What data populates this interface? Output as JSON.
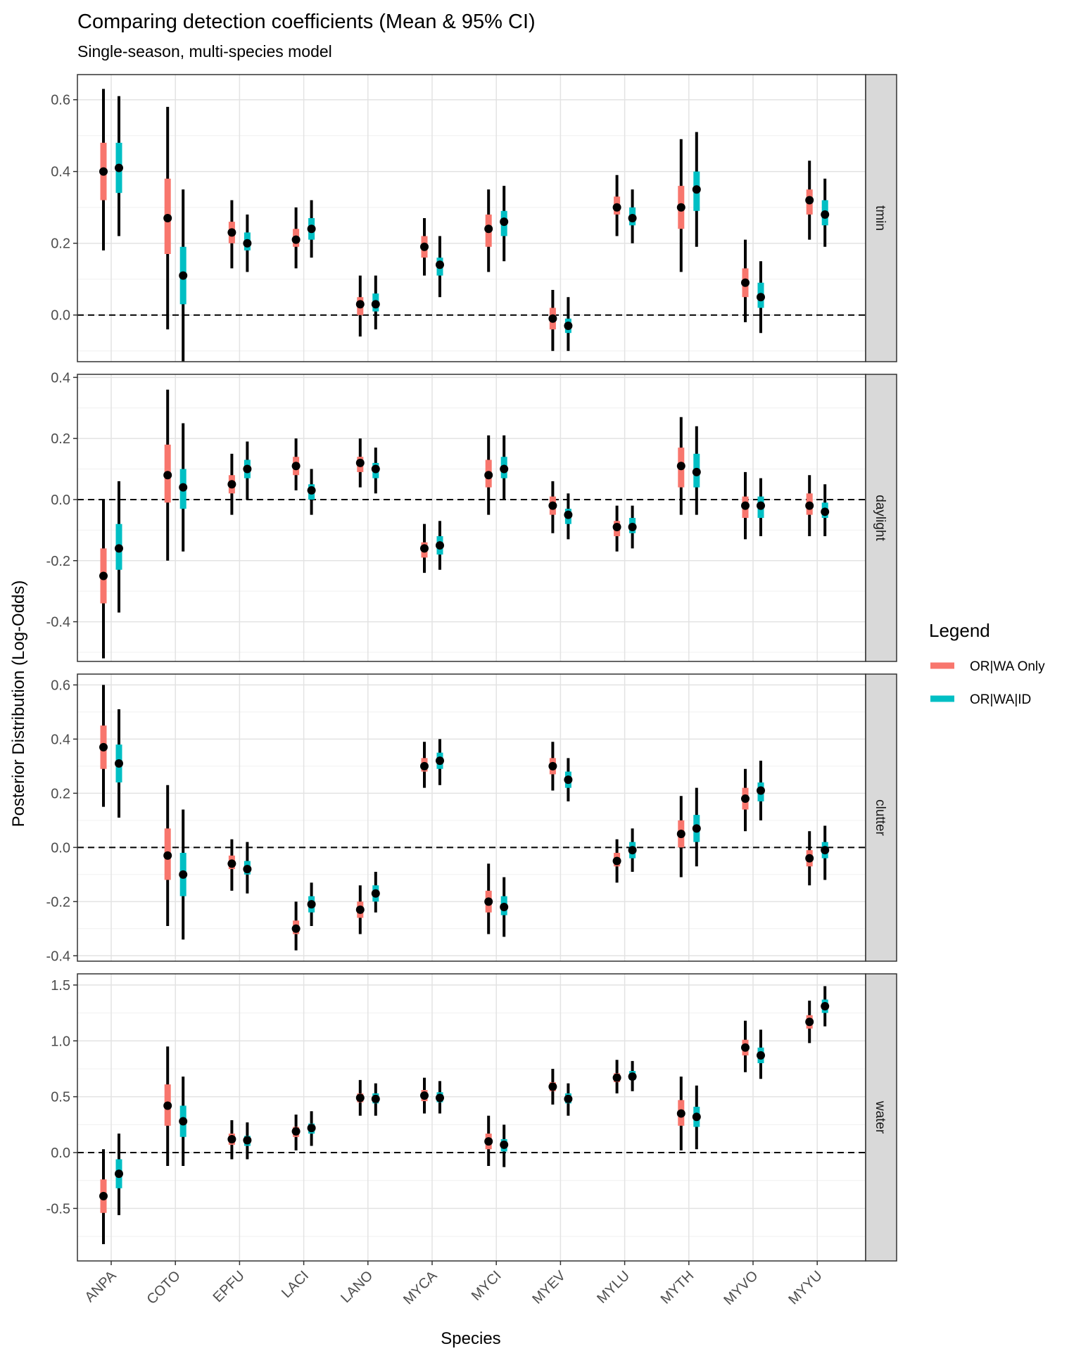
{
  "chart_data": {
    "type": "pointrange-facet",
    "title": "Comparing detection coefficients (Mean & 95% CI)",
    "subtitle": "Single-season, multi-species model",
    "xlabel": "Species",
    "ylabel": "Posterior Distribution (Log-Odds)",
    "categories": [
      "ANPA",
      "COTO",
      "EPFU",
      "LACI",
      "LANO",
      "MYCA",
      "MYCI",
      "MYEV",
      "MYLU",
      "MYTH",
      "MYVO",
      "MYYU"
    ],
    "reference_line": 0,
    "legend": {
      "title": "Legend",
      "position": "right",
      "entries": [
        {
          "label": "OR|WA Only",
          "color": "#F8766D"
        },
        {
          "label": "OR|WA|ID",
          "color": "#00BFC4"
        }
      ]
    },
    "colors": {
      "or_wa": "#F8766D",
      "or_wa_id": "#00BFC4",
      "point": "#000000",
      "strip": "#d9d9d9"
    },
    "panels": [
      {
        "name": "tmin",
        "ylim": [
          -0.13,
          0.67
        ],
        "ticks": [
          {
            "v": 0.6,
            "label": "0.6"
          },
          {
            "v": 0.4,
            "label": "0.4"
          },
          {
            "v": 0.2,
            "label": "0.2"
          },
          {
            "v": 0.0,
            "label": "0.0"
          }
        ],
        "series": [
          {
            "name": "OR|WA Only",
            "mean": [
              0.4,
              0.27,
              0.23,
              0.21,
              0.03,
              0.19,
              0.24,
              -0.01,
              0.3,
              0.3,
              0.09,
              0.32
            ],
            "lo50": [
              0.32,
              0.17,
              0.2,
              0.19,
              0.0,
              0.16,
              0.19,
              -0.04,
              0.28,
              0.24,
              0.05,
              0.28
            ],
            "hi50": [
              0.48,
              0.38,
              0.26,
              0.24,
              0.05,
              0.22,
              0.28,
              0.02,
              0.33,
              0.36,
              0.13,
              0.35
            ],
            "lo95": [
              0.18,
              -0.04,
              0.13,
              0.13,
              -0.06,
              0.11,
              0.12,
              -0.1,
              0.22,
              0.12,
              -0.02,
              0.21
            ],
            "hi95": [
              0.63,
              0.58,
              0.32,
              0.3,
              0.11,
              0.27,
              0.35,
              0.07,
              0.39,
              0.49,
              0.21,
              0.43
            ]
          },
          {
            "name": "OR|WA|ID",
            "mean": [
              0.41,
              0.11,
              0.2,
              0.24,
              0.03,
              0.14,
              0.26,
              -0.03,
              0.27,
              0.35,
              0.05,
              0.28
            ],
            "lo50": [
              0.34,
              0.03,
              0.18,
              0.21,
              0.01,
              0.11,
              0.22,
              -0.05,
              0.25,
              0.29,
              0.02,
              0.25
            ],
            "hi50": [
              0.48,
              0.19,
              0.23,
              0.27,
              0.06,
              0.16,
              0.29,
              -0.01,
              0.3,
              0.4,
              0.09,
              0.32
            ],
            "lo95": [
              0.22,
              -0.13,
              0.12,
              0.16,
              -0.04,
              0.05,
              0.15,
              -0.1,
              0.2,
              0.19,
              -0.05,
              0.19
            ],
            "hi95": [
              0.61,
              0.35,
              0.28,
              0.32,
              0.11,
              0.22,
              0.36,
              0.05,
              0.35,
              0.51,
              0.15,
              0.38
            ]
          }
        ]
      },
      {
        "name": "daylight",
        "ylim": [
          -0.53,
          0.41
        ],
        "ticks": [
          {
            "v": 0.4,
            "label": "0.4"
          },
          {
            "v": 0.2,
            "label": "0.2"
          },
          {
            "v": 0.0,
            "label": "0.0"
          },
          {
            "v": -0.2,
            "label": "-0.2"
          },
          {
            "v": -0.4,
            "label": "-0.4"
          }
        ],
        "series": [
          {
            "name": "OR|WA Only",
            "mean": [
              -0.25,
              0.08,
              0.05,
              0.11,
              0.12,
              -0.16,
              0.08,
              -0.02,
              -0.09,
              0.11,
              -0.02,
              -0.02
            ],
            "lo50": [
              -0.34,
              -0.01,
              0.02,
              0.08,
              0.09,
              -0.19,
              0.04,
              -0.05,
              -0.12,
              0.04,
              -0.06,
              -0.05
            ],
            "hi50": [
              -0.16,
              0.18,
              0.08,
              0.14,
              0.14,
              -0.14,
              0.13,
              0.01,
              -0.07,
              0.17,
              0.01,
              0.02
            ],
            "lo95": [
              -0.52,
              -0.2,
              -0.05,
              0.03,
              0.04,
              -0.24,
              -0.05,
              -0.11,
              -0.17,
              -0.05,
              -0.13,
              -0.12
            ],
            "hi95": [
              0.0,
              0.36,
              0.15,
              0.2,
              0.2,
              -0.08,
              0.21,
              0.06,
              -0.02,
              0.27,
              0.09,
              0.08
            ]
          },
          {
            "name": "OR|WA|ID",
            "mean": [
              -0.16,
              0.04,
              0.1,
              0.03,
              0.1,
              -0.15,
              0.1,
              -0.05,
              -0.09,
              0.09,
              -0.02,
              -0.04
            ],
            "lo50": [
              -0.23,
              -0.03,
              0.07,
              0.0,
              0.07,
              -0.18,
              0.07,
              -0.08,
              -0.11,
              0.04,
              -0.06,
              -0.06
            ],
            "hi50": [
              -0.08,
              0.1,
              0.13,
              0.05,
              0.12,
              -0.12,
              0.14,
              -0.03,
              -0.06,
              0.15,
              0.01,
              -0.01
            ],
            "lo95": [
              -0.37,
              -0.17,
              0.0,
              -0.05,
              0.02,
              -0.23,
              0.0,
              -0.13,
              -0.16,
              -0.05,
              -0.12,
              -0.12
            ],
            "hi95": [
              0.06,
              0.25,
              0.19,
              0.1,
              0.17,
              -0.07,
              0.21,
              0.02,
              -0.02,
              0.24,
              0.07,
              0.05
            ]
          }
        ]
      },
      {
        "name": "clutter",
        "ylim": [
          -0.42,
          0.64
        ],
        "ticks": [
          {
            "v": 0.6,
            "label": "0.6"
          },
          {
            "v": 0.4,
            "label": "0.4"
          },
          {
            "v": 0.2,
            "label": "0.2"
          },
          {
            "v": 0.0,
            "label": "0.0"
          },
          {
            "v": -0.2,
            "label": "-0.2"
          },
          {
            "v": -0.4,
            "label": "-0.4"
          }
        ],
        "series": [
          {
            "name": "OR|WA Only",
            "mean": [
              0.37,
              -0.03,
              -0.06,
              -0.3,
              -0.23,
              0.3,
              -0.2,
              0.3,
              -0.05,
              0.05,
              0.18,
              -0.04
            ],
            "lo50": [
              0.29,
              -0.12,
              -0.08,
              -0.32,
              -0.26,
              0.28,
              -0.24,
              0.27,
              -0.07,
              -0.0,
              0.14,
              -0.07
            ],
            "hi50": [
              0.45,
              0.07,
              -0.03,
              -0.27,
              -0.2,
              0.33,
              -0.16,
              0.33,
              -0.02,
              0.1,
              0.22,
              -0.01
            ],
            "lo95": [
              0.15,
              -0.29,
              -0.16,
              -0.38,
              -0.32,
              0.22,
              -0.32,
              0.21,
              -0.13,
              -0.11,
              0.06,
              -0.14
            ],
            "hi95": [
              0.6,
              0.23,
              0.03,
              -0.2,
              -0.14,
              0.39,
              -0.06,
              0.39,
              0.03,
              0.19,
              0.29,
              0.06
            ]
          },
          {
            "name": "OR|WA|ID",
            "mean": [
              0.31,
              -0.1,
              -0.08,
              -0.21,
              -0.17,
              0.32,
              -0.22,
              0.25,
              -0.01,
              0.07,
              0.21,
              -0.01
            ],
            "lo50": [
              0.24,
              -0.18,
              -0.1,
              -0.24,
              -0.2,
              0.29,
              -0.25,
              0.22,
              -0.04,
              0.02,
              0.17,
              -0.04
            ],
            "hi50": [
              0.38,
              -0.02,
              -0.05,
              -0.18,
              -0.14,
              0.35,
              -0.18,
              0.28,
              0.02,
              0.12,
              0.24,
              0.02
            ],
            "lo95": [
              0.11,
              -0.34,
              -0.17,
              -0.29,
              -0.24,
              0.23,
              -0.33,
              0.17,
              -0.09,
              -0.07,
              0.1,
              -0.12
            ],
            "hi95": [
              0.51,
              0.14,
              0.02,
              -0.13,
              -0.09,
              0.4,
              -0.11,
              0.33,
              0.07,
              0.22,
              0.32,
              0.08
            ]
          }
        ]
      },
      {
        "name": "water",
        "ylim": [
          -0.97,
          1.6
        ],
        "ticks": [
          {
            "v": 1.5,
            "label": "1.5"
          },
          {
            "v": 1.0,
            "label": "1.0"
          },
          {
            "v": 0.5,
            "label": "0.5"
          },
          {
            "v": 0.0,
            "label": "0.0"
          },
          {
            "v": -0.5,
            "label": "-0.5"
          }
        ],
        "series": [
          {
            "name": "OR|WA Only",
            "mean": [
              -0.39,
              0.42,
              0.12,
              0.19,
              0.49,
              0.51,
              0.1,
              0.59,
              0.67,
              0.35,
              0.94,
              1.17
            ],
            "lo50": [
              -0.54,
              0.24,
              0.07,
              0.14,
              0.45,
              0.46,
              0.03,
              0.55,
              0.63,
              0.24,
              0.87,
              1.11
            ],
            "hi50": [
              -0.24,
              0.61,
              0.17,
              0.23,
              0.53,
              0.56,
              0.17,
              0.63,
              0.71,
              0.47,
              1.01,
              1.23
            ],
            "lo95": [
              -0.82,
              -0.12,
              -0.06,
              0.02,
              0.33,
              0.35,
              -0.12,
              0.43,
              0.53,
              0.02,
              0.72,
              0.98
            ],
            "hi95": [
              0.03,
              0.95,
              0.29,
              0.34,
              0.65,
              0.67,
              0.33,
              0.75,
              0.83,
              0.68,
              1.18,
              1.36
            ]
          },
          {
            "name": "OR|WA|ID",
            "mean": [
              -0.19,
              0.28,
              0.11,
              0.22,
              0.48,
              0.49,
              0.07,
              0.48,
              0.68,
              0.32,
              0.87,
              1.31
            ],
            "lo50": [
              -0.32,
              0.14,
              0.06,
              0.17,
              0.44,
              0.45,
              0.01,
              0.44,
              0.65,
              0.23,
              0.8,
              1.25
            ],
            "hi50": [
              -0.06,
              0.42,
              0.15,
              0.26,
              0.53,
              0.54,
              0.12,
              0.53,
              0.73,
              0.41,
              0.94,
              1.37
            ],
            "lo95": [
              -0.56,
              -0.12,
              -0.06,
              0.06,
              0.33,
              0.35,
              -0.13,
              0.33,
              0.55,
              0.03,
              0.66,
              1.13
            ],
            "hi95": [
              0.17,
              0.68,
              0.27,
              0.37,
              0.62,
              0.64,
              0.25,
              0.62,
              0.82,
              0.6,
              1.1,
              1.49
            ]
          }
        ]
      }
    ]
  }
}
